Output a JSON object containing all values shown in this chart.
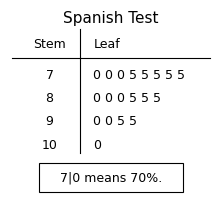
{
  "title": "Spanish Test",
  "stem_label": "Stem",
  "leaf_label": "Leaf",
  "rows": [
    {
      "stem": "7",
      "leaf": "0 0 0 5 5 5 5 5"
    },
    {
      "stem": "8",
      "leaf": "0 0 0 5 5 5"
    },
    {
      "stem": "9",
      "leaf": "0 0 5 5"
    },
    {
      "stem": "10",
      "leaf": "0"
    }
  ],
  "key_text": "7|0 means 70%.",
  "bg_color": "#ffffff",
  "text_color": "#000000",
  "font_size": 9,
  "title_font_size": 11
}
